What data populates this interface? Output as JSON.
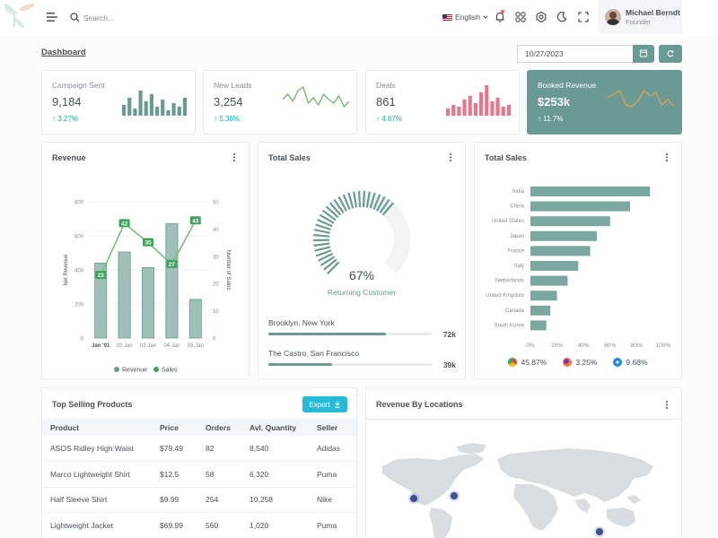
{
  "header": {
    "search_placeholder": "Search...",
    "language": "English",
    "user_name": "Michael Berndt",
    "user_role": "Founder"
  },
  "page": {
    "title": "Dashboard",
    "date": "10/27/2023"
  },
  "kpis": [
    {
      "label": "Campaign Sent",
      "value": "9,184",
      "change": "3.27%",
      "spark_type": "bar",
      "color": "#6a9a93"
    },
    {
      "label": "New Leads",
      "value": "3,254",
      "change": "5.38%",
      "spark_type": "line",
      "color": "#6fb36a"
    },
    {
      "label": "Deals",
      "value": "861",
      "change": "4.87%",
      "spark_type": "bar",
      "color": "#e8768a"
    },
    {
      "label": "Booked Revenue",
      "value": "$253k",
      "change": "11.7%",
      "spark_type": "line",
      "color": "#d9a35c"
    }
  ],
  "revenue_card": {
    "title": "Revenue"
  },
  "total_sales_gauge": {
    "title": "Total Sales",
    "percent_label": "67%",
    "percent": 67,
    "subtitle": "Returning Customer",
    "locations": [
      {
        "name": "Brooklyn, New York",
        "value": "72k",
        "fraction": 0.72
      },
      {
        "name": "The Castro, San Francisco",
        "value": "39k",
        "fraction": 0.39
      }
    ]
  },
  "total_sales_countries": {
    "title": "Total Sales",
    "browsers": [
      {
        "icon": "chrome-icon",
        "value": "45.87%",
        "color": "#ea4335"
      },
      {
        "icon": "firefox-icon",
        "value": "3.25%",
        "color": "#ff7139"
      },
      {
        "icon": "safari-icon",
        "value": "9.68%",
        "color": "#1e88e5"
      }
    ]
  },
  "top_products": {
    "title": "Top Selling Products",
    "export_label": "Export",
    "columns": [
      "Product",
      "Price",
      "Orders",
      "Avl. Quantity",
      "Seller"
    ],
    "rows": [
      [
        "ASOS Ridley High Waist",
        "$79.49",
        "82",
        "8,540",
        "Adidas"
      ],
      [
        "Marco Lightweight Shirt",
        "$12.5",
        "58",
        "6,320",
        "Puma"
      ],
      [
        "Half Sleeve Shirt",
        "$9.99",
        "254",
        "10,258",
        "Nike"
      ],
      [
        "Lightweight Jacket",
        "$69.99",
        "560",
        "1,020",
        "Puma"
      ]
    ]
  },
  "revenue_locations": {
    "title": "Revenue By Locations"
  },
  "chart_data": [
    {
      "type": "bar",
      "categories": [
        "Jan '01",
        "02 Jan",
        "03 Jan",
        "04 Jan",
        "05 Jan"
      ],
      "series": [
        {
          "name": "Revenue",
          "type": "bar",
          "values": [
            440,
            505,
            414,
            671,
            227
          ],
          "axis": "left",
          "color": "#9fbfb9"
        },
        {
          "name": "Sales",
          "type": "line",
          "values": [
            23,
            42,
            35,
            27,
            43
          ],
          "axis": "right",
          "color": "#6fbf73"
        }
      ],
      "ylabel": "Net Revenue",
      "y2label": "Number of Sales",
      "ylim": [
        0,
        800
      ],
      "y2lim": [
        0,
        50
      ],
      "yticks": [
        0,
        200,
        400,
        600,
        800
      ],
      "y2ticks": [
        0,
        10,
        20,
        30,
        40,
        50
      ],
      "legend": "bottom"
    },
    {
      "type": "bar",
      "orientation": "horizontal",
      "categories": [
        "India",
        "China",
        "United States",
        "Japan",
        "France",
        "Italy",
        "Netherlands",
        "United Kingdom",
        "Canada",
        "South Korea"
      ],
      "values": [
        90,
        75,
        60,
        50,
        45,
        36,
        28,
        20,
        15,
        12
      ],
      "xlim": [
        0,
        100
      ],
      "xticks": [
        "0%",
        "20%",
        "40%",
        "60%",
        "80%",
        "100%"
      ],
      "color": "#7aa7a0"
    }
  ]
}
